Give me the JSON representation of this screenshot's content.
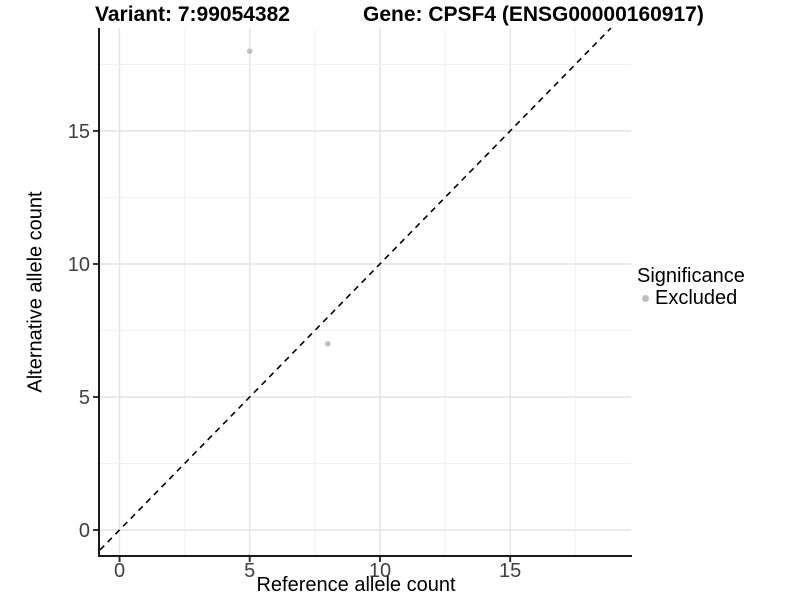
{
  "header": {
    "variant_title": "Variant: 7:99054382",
    "gene_title": "Gene: CPSF4 (ENSG00000160917)"
  },
  "chart_data": {
    "type": "scatter",
    "title_left": "Variant: 7:99054382",
    "title_right": "Gene: CPSF4 (ENSG00000160917)",
    "xlabel": "Reference allele count",
    "ylabel": "Alternative allele count",
    "xlim": [
      -0.75,
      19.64
    ],
    "ylim": [
      -0.94,
      18.87
    ],
    "xticks": [
      0,
      5,
      10,
      15
    ],
    "yticks": [
      0,
      5,
      10,
      15
    ],
    "minor_grid_step": 2.5,
    "grid": true,
    "identity_line": {
      "style": "dashed",
      "slope": 1,
      "intercept": 0,
      "color": "#000000"
    },
    "series": [
      {
        "name": "Excluded",
        "color": "#bfbfbf",
        "points": [
          {
            "x": 5,
            "y": 18
          },
          {
            "x": 8,
            "y": 7
          }
        ]
      }
    ],
    "legend": {
      "title": "Significance",
      "position": "right",
      "entries": [
        {
          "label": "Excluded",
          "color": "#bfbfbf"
        }
      ]
    },
    "colors": {
      "grid_major": "#e4e4e4",
      "grid_minor": "#f1f1f1",
      "axis_line": "#1a1a1a",
      "tick_mark": "#333333",
      "tick_label": "#404040",
      "point": "#bfbfbf",
      "background": "#ffffff"
    }
  }
}
